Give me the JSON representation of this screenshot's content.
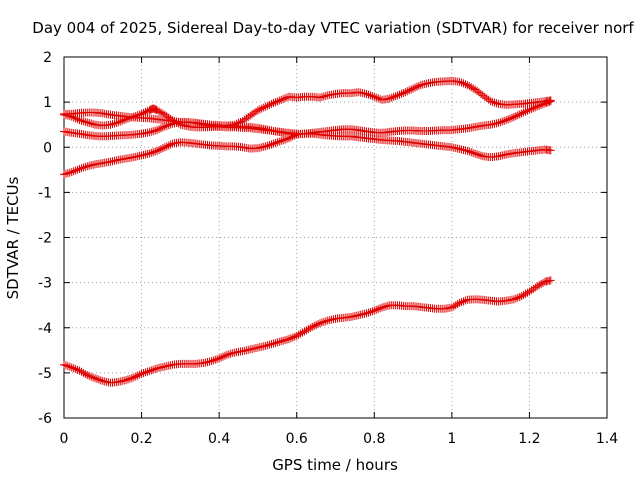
{
  "chart_data": {
    "type": "scatter",
    "title": "Day 004 of 2025, Sidereal Day-to-day VTEC variation (SDTVAR) for receiver norf",
    "xlabel": "GPS time / hours",
    "ylabel": "SDTVAR / TECUs",
    "xlim": [
      0,
      1.4
    ],
    "ylim": [
      -6,
      2
    ],
    "xticks": [
      0,
      0.2,
      0.4,
      0.6,
      0.8,
      1,
      1.2,
      1.4
    ],
    "xtick_labels": [
      "0",
      "0.2",
      "0.4",
      "0.6",
      "0.8",
      "1",
      "1.2",
      "1.4"
    ],
    "yticks": [
      -6,
      -5,
      -4,
      -3,
      -2,
      -1,
      0,
      1,
      2
    ],
    "ytick_labels": [
      "-6",
      "-5",
      "-4",
      "-3",
      "-2",
      "-1",
      "0",
      "1",
      "2"
    ],
    "grid": true,
    "marker": "+",
    "color": "#e00000",
    "series": [
      {
        "name": "series-1",
        "x": [
          0,
          0.02,
          0.04,
          0.06,
          0.08,
          0.1,
          0.12,
          0.14,
          0.16,
          0.18,
          0.2,
          0.22,
          0.23,
          0.24,
          0.26,
          0.28,
          0.3,
          0.32,
          0.34,
          0.36,
          0.38,
          0.4,
          0.42,
          0.44,
          0.46,
          0.48,
          0.5,
          0.52,
          0.54,
          0.56,
          0.58,
          0.6,
          0.62,
          0.64,
          0.66,
          0.68,
          0.7,
          0.72,
          0.74,
          0.76,
          0.78,
          0.8,
          0.82,
          0.84,
          0.86,
          0.88,
          0.9,
          0.92,
          0.94,
          0.96,
          0.98,
          1,
          1.02,
          1.04,
          1.06,
          1.08,
          1.1,
          1.12,
          1.14,
          1.16,
          1.18,
          1.2,
          1.22,
          1.24,
          1.255
        ],
        "y": [
          0.72,
          0.68,
          0.6,
          0.55,
          0.5,
          0.48,
          0.5,
          0.55,
          0.62,
          0.68,
          0.74,
          0.82,
          0.86,
          0.82,
          0.72,
          0.6,
          0.5,
          0.46,
          0.44,
          0.44,
          0.45,
          0.46,
          0.48,
          0.5,
          0.58,
          0.7,
          0.82,
          0.9,
          0.98,
          1.05,
          1.12,
          1.1,
          1.12,
          1.12,
          1.1,
          1.15,
          1.18,
          1.2,
          1.2,
          1.22,
          1.18,
          1.12,
          1.05,
          1.08,
          1.15,
          1.22,
          1.3,
          1.38,
          1.42,
          1.45,
          1.46,
          1.47,
          1.45,
          1.38,
          1.28,
          1.15,
          1.02,
          0.96,
          0.94,
          0.95,
          0.96,
          0.98,
          1.0,
          1.02,
          1.04
        ]
      },
      {
        "name": "series-2",
        "x": [
          0,
          0.02,
          0.04,
          0.06,
          0.08,
          0.1,
          0.12,
          0.14,
          0.16,
          0.18,
          0.2,
          0.22,
          0.24,
          0.26,
          0.28,
          0.3,
          0.32,
          0.34,
          0.36,
          0.38,
          0.4,
          0.42,
          0.44,
          0.46,
          0.48,
          0.5,
          0.52,
          0.54,
          0.56,
          0.58,
          0.6,
          0.62,
          0.64,
          0.66,
          0.68,
          0.7,
          0.72,
          0.74,
          0.76,
          0.78,
          0.8,
          0.82,
          0.84,
          0.86,
          0.88,
          0.9,
          0.92,
          0.94,
          0.96,
          0.98,
          1,
          1.02,
          1.04,
          1.06,
          1.08,
          1.1,
          1.12,
          1.14,
          1.16,
          1.18,
          1.2,
          1.22,
          1.24,
          1.255
        ],
        "y": [
          0.74,
          0.74,
          0.76,
          0.77,
          0.77,
          0.75,
          0.72,
          0.7,
          0.68,
          0.66,
          0.65,
          0.64,
          0.62,
          0.6,
          0.58,
          0.56,
          0.55,
          0.54,
          0.52,
          0.5,
          0.49,
          0.48,
          0.47,
          0.46,
          0.45,
          0.43,
          0.4,
          0.36,
          0.33,
          0.3,
          0.28,
          0.3,
          0.32,
          0.34,
          0.36,
          0.38,
          0.4,
          0.4,
          0.38,
          0.35,
          0.33,
          0.32,
          0.34,
          0.36,
          0.37,
          0.37,
          0.36,
          0.36,
          0.37,
          0.38,
          0.38,
          0.4,
          0.42,
          0.45,
          0.48,
          0.5,
          0.54,
          0.6,
          0.67,
          0.75,
          0.83,
          0.9,
          0.97,
          1.02
        ]
      },
      {
        "name": "series-3",
        "x": [
          0,
          0.02,
          0.04,
          0.06,
          0.08,
          0.1,
          0.12,
          0.14,
          0.16,
          0.18,
          0.2,
          0.22,
          0.24,
          0.26,
          0.28,
          0.3,
          0.32,
          0.34,
          0.36,
          0.38,
          0.4,
          0.42,
          0.44,
          0.46,
          0.48,
          0.5,
          0.52,
          0.54,
          0.56,
          0.58,
          0.6,
          0.62,
          0.64,
          0.66,
          0.68,
          0.7,
          0.72,
          0.74,
          0.76,
          0.78,
          0.8,
          0.82,
          0.84,
          0.86,
          0.88,
          0.9,
          0.92,
          0.94,
          0.96,
          0.98,
          1,
          1.02,
          1.04,
          1.06,
          1.08,
          1.1,
          1.12,
          1.14,
          1.16,
          1.18,
          1.2,
          1.22,
          1.24,
          1.255
        ],
        "y": [
          0.35,
          0.32,
          0.3,
          0.27,
          0.25,
          0.24,
          0.25,
          0.26,
          0.27,
          0.28,
          0.3,
          0.33,
          0.38,
          0.46,
          0.52,
          0.56,
          0.56,
          0.54,
          0.5,
          0.47,
          0.45,
          0.44,
          0.44,
          0.43,
          0.42,
          0.4,
          0.38,
          0.36,
          0.34,
          0.32,
          0.3,
          0.3,
          0.3,
          0.28,
          0.26,
          0.25,
          0.24,
          0.24,
          0.22,
          0.2,
          0.18,
          0.16,
          0.15,
          0.14,
          0.12,
          0.1,
          0.08,
          0.06,
          0.04,
          0.02,
          0.0,
          -0.04,
          -0.08,
          -0.14,
          -0.2,
          -0.22,
          -0.2,
          -0.16,
          -0.13,
          -0.11,
          -0.09,
          -0.07,
          -0.05,
          -0.07
        ]
      },
      {
        "name": "series-4",
        "x": [
          0,
          0.02,
          0.04,
          0.06,
          0.08,
          0.1,
          0.12,
          0.14,
          0.16,
          0.18,
          0.2,
          0.22,
          0.24,
          0.26,
          0.28,
          0.3,
          0.32,
          0.34,
          0.36,
          0.38,
          0.4,
          0.42,
          0.44,
          0.46,
          0.48,
          0.5,
          0.52,
          0.54,
          0.56,
          0.58,
          0.6
        ],
        "y": [
          -0.6,
          -0.55,
          -0.48,
          -0.42,
          -0.38,
          -0.35,
          -0.32,
          -0.28,
          -0.25,
          -0.22,
          -0.18,
          -0.14,
          -0.08,
          0.0,
          0.08,
          0.11,
          0.1,
          0.08,
          0.06,
          0.04,
          0.03,
          0.02,
          0.02,
          0.0,
          -0.03,
          -0.02,
          0.02,
          0.08,
          0.14,
          0.2,
          0.28
        ]
      },
      {
        "name": "series-5",
        "x": [
          0,
          0.02,
          0.04,
          0.06,
          0.08,
          0.1,
          0.12,
          0.14,
          0.16,
          0.18,
          0.2,
          0.22,
          0.24,
          0.26,
          0.28,
          0.3,
          0.32,
          0.34,
          0.36,
          0.38,
          0.4,
          0.42,
          0.44,
          0.46,
          0.48,
          0.5,
          0.52,
          0.54,
          0.56,
          0.58,
          0.6,
          0.62,
          0.64,
          0.66,
          0.68,
          0.7,
          0.72,
          0.74,
          0.76,
          0.78,
          0.8,
          0.82,
          0.84,
          0.86,
          0.88,
          0.9,
          0.92,
          0.94,
          0.96,
          0.98,
          1,
          1.02,
          1.04,
          1.06,
          1.08,
          1.1,
          1.12,
          1.14,
          1.16,
          1.18,
          1.2,
          1.22,
          1.24,
          1.255
        ],
        "y": [
          -4.82,
          -4.88,
          -4.95,
          -5.05,
          -5.12,
          -5.18,
          -5.22,
          -5.2,
          -5.16,
          -5.1,
          -5.02,
          -4.96,
          -4.9,
          -4.86,
          -4.82,
          -4.8,
          -4.8,
          -4.8,
          -4.78,
          -4.74,
          -4.68,
          -4.6,
          -4.55,
          -4.52,
          -4.48,
          -4.44,
          -4.4,
          -4.35,
          -4.3,
          -4.25,
          -4.18,
          -4.08,
          -3.98,
          -3.9,
          -3.84,
          -3.8,
          -3.78,
          -3.76,
          -3.72,
          -3.68,
          -3.62,
          -3.55,
          -3.5,
          -3.5,
          -3.52,
          -3.52,
          -3.54,
          -3.56,
          -3.58,
          -3.58,
          -3.55,
          -3.45,
          -3.38,
          -3.37,
          -3.38,
          -3.4,
          -3.42,
          -3.4,
          -3.37,
          -3.3,
          -3.2,
          -3.08,
          -2.98,
          -2.95
        ]
      }
    ]
  }
}
